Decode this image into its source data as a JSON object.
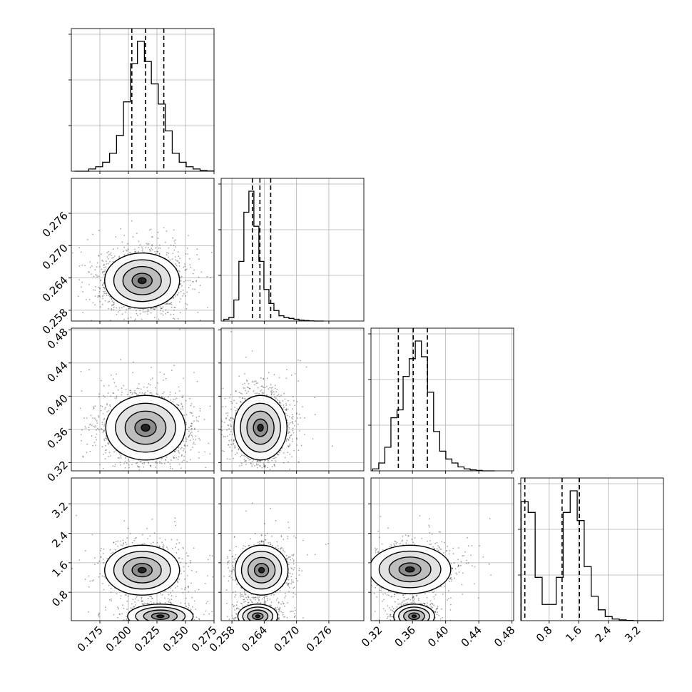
{
  "chart_data": {
    "type": "corner",
    "parameters": [
      {
        "range": [
          0.15,
          0.275
        ],
        "ticks": [
          "0.175",
          "0.200",
          "0.225",
          "0.250",
          "0.275"
        ],
        "tick_values": [
          0.175,
          0.2,
          0.225,
          0.25,
          0.275
        ],
        "quantiles": [
          0.203,
          0.215,
          0.231
        ],
        "hist_edges_start": 0.153,
        "hist_bin": 0.0061,
        "hist": [
          0,
          0,
          1,
          2,
          4,
          8,
          16,
          31,
          48,
          58,
          49,
          39,
          30,
          18,
          8,
          4,
          2,
          1,
          0.3,
          0.1
        ]
      },
      {
        "range": [
          0.256,
          0.2825
        ],
        "ticks": [
          "0.258",
          "0.264",
          "0.270",
          "0.276"
        ],
        "tick_values": [
          0.258,
          0.264,
          0.27,
          0.276
        ],
        "quantiles": [
          0.2618,
          0.2632,
          0.2652
        ],
        "hist_edges_start": 0.2565,
        "hist_bin": 0.00093,
        "hist": [
          1,
          2,
          12,
          34,
          62,
          74,
          54,
          34,
          18,
          10,
          6,
          3,
          2,
          1.5,
          1,
          0.5,
          0.3,
          0.1,
          0,
          0
        ]
      },
      {
        "range": [
          0.31,
          0.482
        ],
        "ticks": [
          "0.32",
          "0.36",
          "0.40",
          "0.44",
          "0.48"
        ],
        "tick_values": [
          0.32,
          0.36,
          0.4,
          0.44,
          0.48
        ],
        "quantiles": [
          0.343,
          0.361,
          0.378
        ],
        "hist_edges_start": 0.312,
        "hist_bin": 0.00735,
        "hist": [
          1,
          4,
          12,
          27,
          31,
          48,
          57,
          66,
          58,
          40,
          20,
          10,
          6,
          4,
          2,
          1,
          0.5,
          0.2,
          0,
          0
        ]
      },
      {
        "range": [
          0.03,
          3.9
        ],
        "ticks": [
          "0.8",
          "1.6",
          "2.4",
          "3.2"
        ],
        "tick_values": [
          0.8,
          1.6,
          2.4,
          3.2
        ],
        "quantiles": [
          0.14,
          1.15,
          1.62
        ],
        "hist_edges_start": 0.04,
        "hist_bin": 0.19,
        "hist": [
          44,
          40,
          16,
          6,
          6,
          16,
          40,
          48,
          37,
          20,
          9,
          4,
          1.5,
          0.6,
          0.3,
          0.1,
          0,
          0,
          0,
          0
        ]
      }
    ],
    "blobs": {
      "1-0": [
        {
          "w": 1,
          "mu": [
            0.212,
            0.2635
          ],
          "sd": [
            0.016,
            0.0025
          ]
        }
      ],
      "2-0": [
        {
          "w": 1,
          "mu": [
            0.215,
            0.362
          ],
          "sd": [
            0.017,
            0.019
          ]
        }
      ],
      "2-1": [
        {
          "w": 1,
          "mu": [
            0.2633,
            0.362
          ],
          "sd": [
            0.0024,
            0.019
          ]
        }
      ],
      "3-0": [
        {
          "w": 0.58,
          "mu": [
            0.212,
            1.4
          ],
          "sd": [
            0.016,
            0.33
          ]
        },
        {
          "w": 0.42,
          "mu": [
            0.228,
            0.15
          ],
          "sd": [
            0.014,
            0.16
          ]
        }
      ],
      "3-1": [
        {
          "w": 0.58,
          "mu": [
            0.2635,
            1.4
          ],
          "sd": [
            0.0024,
            0.33
          ]
        },
        {
          "w": 0.42,
          "mu": [
            0.2628,
            0.15
          ],
          "sd": [
            0.0018,
            0.16
          ]
        }
      ],
      "3-2": [
        {
          "w": 0.58,
          "mu": [
            0.357,
            1.42
          ],
          "sd": [
            0.024,
            0.32
          ]
        },
        {
          "w": 0.42,
          "mu": [
            0.362,
            0.15
          ],
          "sd": [
            0.012,
            0.16
          ]
        }
      ]
    },
    "contour_rings": [
      {
        "r": 2.05,
        "gray": "#ffffff"
      },
      {
        "r": 1.55,
        "gray": "#e2e2e2"
      },
      {
        "r": 1.05,
        "gray": "#bdbdbd"
      },
      {
        "r": 0.55,
        "gray": "#8c8c8c"
      },
      {
        "r": 0.22,
        "gray": "#222222"
      }
    ]
  }
}
